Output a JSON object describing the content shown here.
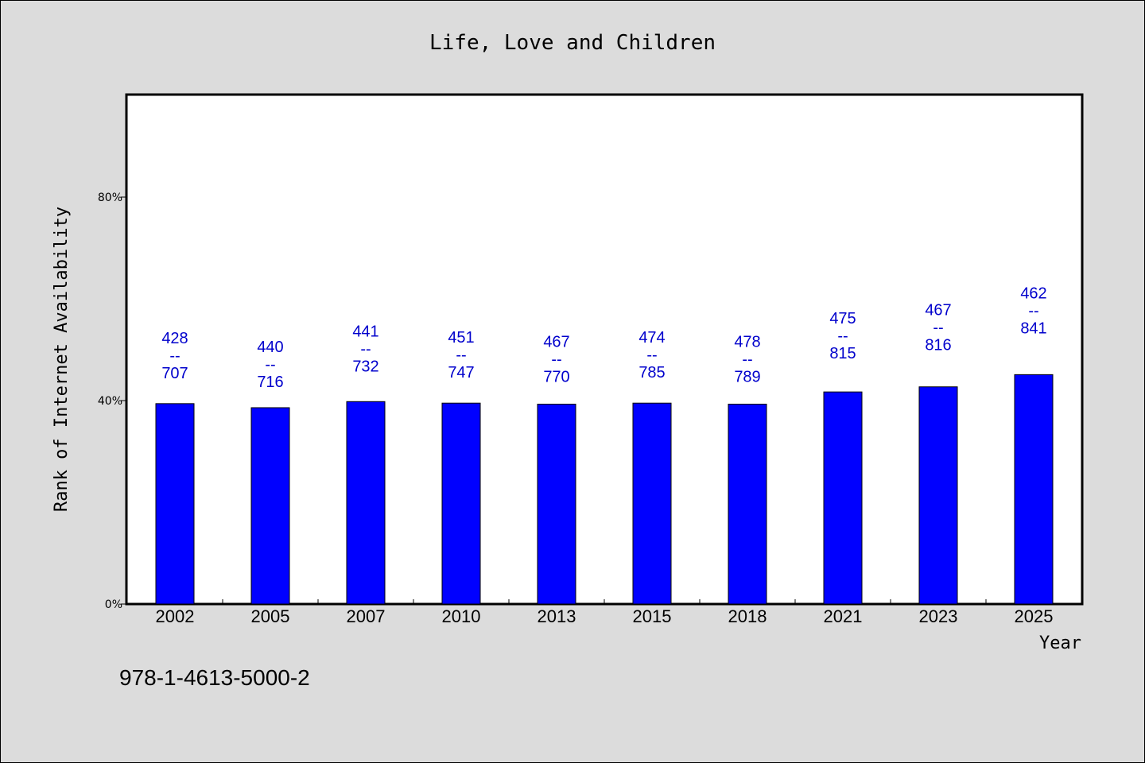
{
  "chart_data": {
    "type": "bar",
    "title": "Life, Love and Children",
    "xlabel": "Year",
    "ylabel": "Rank of Internet Availability",
    "categories": [
      "2002",
      "2005",
      "2007",
      "2010",
      "2013",
      "2015",
      "2018",
      "2021",
      "2023",
      "2025"
    ],
    "values": [
      39.4,
      38.6,
      39.8,
      39.5,
      39.3,
      39.5,
      39.3,
      41.7,
      42.7,
      45.1
    ],
    "top_labels": [
      "428",
      "440",
      "441",
      "451",
      "467",
      "474",
      "478",
      "475",
      "467",
      "462"
    ],
    "bottom_labels": [
      "707",
      "716",
      "732",
      "747",
      "770",
      "785",
      "789",
      "815",
      "816",
      "841"
    ],
    "label_separator": "--",
    "ylim": [
      0,
      100
    ],
    "yticks": [
      0,
      40,
      80
    ],
    "ytick_labels": [
      "0%",
      "40%",
      "80%"
    ],
    "grid": false,
    "bar_color": "#0000ff",
    "label_color": "#0000cc"
  },
  "footnote": "978-1-4613-5000-2"
}
